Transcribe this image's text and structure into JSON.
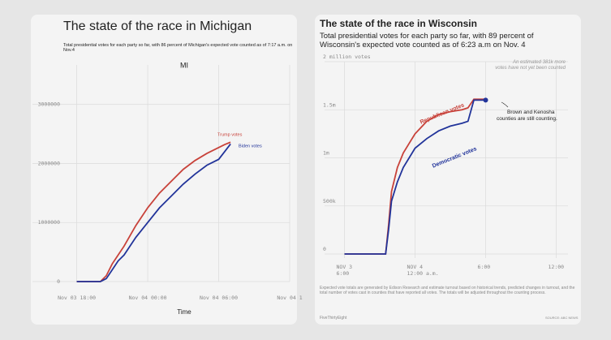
{
  "chart_data": [
    {
      "type": "line",
      "title": "The state of the race in Michigan",
      "subtitle": "Total presidential votes for each party so far, with 86 percent of Michigan's expected vote counted as of 7:17 a.m. on Nov.4",
      "panel_label": "MI",
      "xlabel": "Time",
      "x": [
        "Nov 03 18:00",
        "Nov 03 20:00",
        "Nov 03 20:30",
        "Nov 03 21:00",
        "Nov 03 21:30",
        "Nov 03 22:00",
        "Nov 03 23:00",
        "Nov 04 00:00",
        "Nov 04 01:00",
        "Nov 04 02:00",
        "Nov 04 03:00",
        "Nov 04 04:00",
        "Nov 04 05:00",
        "Nov 04 06:00",
        "Nov 04 06:30",
        "Nov 04 07:00"
      ],
      "series": [
        {
          "name": "Trump votes",
          "color": "#c8423a",
          "values": [
            0,
            0,
            100000,
            300000,
            450000,
            600000,
            950000,
            1250000,
            1500000,
            1700000,
            1900000,
            2050000,
            2170000,
            2270000,
            2320000,
            2360000
          ]
        },
        {
          "name": "Biden votes",
          "color": "#22349a",
          "values": [
            0,
            0,
            50000,
            200000,
            350000,
            450000,
            750000,
            1000000,
            1250000,
            1450000,
            1650000,
            1820000,
            1970000,
            2070000,
            2200000,
            2330000
          ]
        }
      ],
      "xlim": [
        "Nov 03 17:00",
        "Nov 04 12:00"
      ],
      "xticks": [
        "Nov 03 18:00",
        "Nov 04 00:00",
        "Nov 04 06:00",
        {
          "value": "Nov 04 12:00",
          "label": "Nov 04 1"
        }
      ],
      "ylim": [
        0,
        3600000
      ],
      "yticks": [
        0,
        1000000,
        2000000,
        3000000
      ],
      "grid": true
    },
    {
      "type": "line",
      "title": "The state of the race in Wisconsin",
      "subtitle": "Total presidential votes for each party so far, with 89 percent of Wisconsin's expected vote counted as of 6:23 a.m on Nov. 4",
      "annotations": [
        "An estimated 381k more votes have not yet been counted",
        "Brown and Kenosha counties are still counting."
      ],
      "note": "Expected vote totals are generated by Edison Research and estimate turnout based on historical trends, predicted changes in turnout, and the total number of votes cast in counties that have reported all votes. The totals will be adjusted throughout the counting process.",
      "credit": "FiveThirtyEight",
      "source": "SOURCE: ABC NEWS",
      "x": [
        "Nov 03 18:00",
        "Nov 03 21:30",
        "Nov 03 21:45",
        "Nov 03 22:00",
        "Nov 03 22:30",
        "Nov 03 23:00",
        "Nov 04 00:00",
        "Nov 04 01:00",
        "Nov 04 02:00",
        "Nov 04 03:00",
        "Nov 04 04:00",
        "Nov 04 04:30",
        "Nov 04 05:00",
        "Nov 04 06:00"
      ],
      "series": [
        {
          "name": "Republican votes",
          "color": "#c8423a",
          "values": [
            0,
            0,
            300000,
            650000,
            900000,
            1050000,
            1250000,
            1380000,
            1450000,
            1480000,
            1500000,
            1520000,
            1610000,
            1610000
          ]
        },
        {
          "name": "Democratic votes",
          "color": "#22349a",
          "values": [
            0,
            0,
            250000,
            550000,
            750000,
            900000,
            1100000,
            1200000,
            1280000,
            1330000,
            1360000,
            1380000,
            1600000,
            1600000
          ]
        }
      ],
      "xlim": [
        "Nov 03 17:00",
        "Nov 04 13:00"
      ],
      "xticks": [
        {
          "value": "Nov 03 18:00",
          "label": "NOV 3\n6:00"
        },
        {
          "value": "Nov 04 00:00",
          "label": "NOV 4\n12:00 a.m."
        },
        {
          "value": "Nov 04 06:00",
          "label": "6:00"
        },
        {
          "value": "Nov 04 12:00",
          "label": "12:00"
        }
      ],
      "ylim": [
        0,
        2000000
      ],
      "yticks": [
        0,
        {
          "value": 500000,
          "label": "500k"
        },
        {
          "value": 1000000,
          "label": "1m"
        },
        {
          "value": 1500000,
          "label": "1.5m"
        },
        {
          "value": 2000000,
          "label": "2 million votes"
        }
      ],
      "grid": true
    }
  ]
}
